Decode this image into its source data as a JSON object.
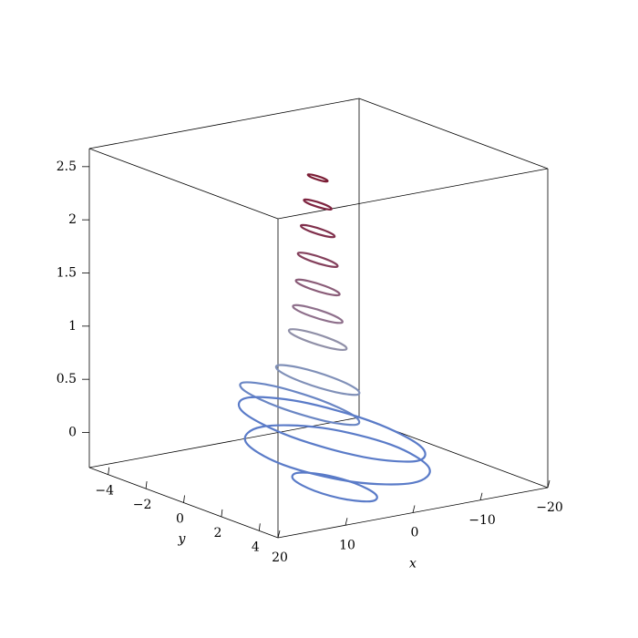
{
  "chart_data": {
    "type": "line3d",
    "xlabel": "x",
    "ylabel": "y",
    "xlim": [
      -20,
      20
    ],
    "ylim": [
      -5,
      5
    ],
    "zlim": [
      -0.33,
      2.67
    ],
    "xticks": [
      20,
      10,
      0,
      {
        "value": -10,
        "label": "−10"
      },
      {
        "value": -20,
        "label": "−20"
      }
    ],
    "yticks": [
      {
        "value": -4,
        "label": "−4"
      },
      {
        "value": -2,
        "label": "−2"
      },
      0,
      2,
      4
    ],
    "zticks": [
      0,
      0.5,
      1,
      1.5,
      2,
      2.5
    ],
    "box": true,
    "series": [
      {
        "color": "#7b1d35",
        "x": [
          -0.5,
          -0.65,
          -1,
          -1.35,
          -1.5,
          -1.35,
          -1,
          -0.65
        ],
        "y": [
          -0.4,
          -0.05,
          0.1,
          -0.05,
          -0.4,
          -0.75,
          -0.9,
          -0.75
        ],
        "z": [
          2.45,
          2.45,
          2.45,
          2.45,
          2.45,
          2.45,
          2.45,
          2.45
        ]
      },
      {
        "color": "#7e2440",
        "x": [
          -0.3,
          -0.51,
          -1,
          -1.49,
          -1.7,
          -1.49,
          -1,
          -0.51
        ],
        "y": [
          -0.4,
          0.09,
          0.3,
          0.09,
          -0.4,
          -0.89,
          -1.1,
          -0.89
        ],
        "z": [
          2.2,
          2.2,
          2.2,
          2.2,
          2.2,
          2.2,
          2.2,
          2.2
        ]
      },
      {
        "color": "#80304c",
        "x": [
          -0.15,
          -0.4,
          -1,
          -1.6,
          -1.85,
          -1.6,
          -1,
          -0.4
        ],
        "y": [
          -0.4,
          0.2,
          0.45,
          0.2,
          -0.4,
          -1,
          -1.25,
          -1
        ],
        "z": [
          1.95,
          1.95,
          1.95,
          1.95,
          1.95,
          1.95,
          1.95,
          1.95
        ]
      },
      {
        "color": "#84405c",
        "x": [
          0,
          -0.29,
          -1,
          -1.71,
          -2,
          -1.71,
          -1,
          -0.29
        ],
        "y": [
          -0.4,
          0.31,
          0.6,
          0.31,
          -0.4,
          -1.11,
          -1.4,
          -1.11
        ],
        "z": [
          1.68,
          1.68,
          1.68,
          1.68,
          1.68,
          1.68,
          1.68,
          1.68
        ]
      },
      {
        "color": "#8a5c78",
        "x": [
          0.1,
          -0.22,
          -1,
          -1.78,
          -2.1,
          -1.78,
          -1,
          -0.22
        ],
        "y": [
          -0.4,
          0.38,
          0.7,
          0.38,
          -0.4,
          -1.18,
          -1.5,
          -1.18
        ],
        "z": [
          1.42,
          1.42,
          1.42,
          1.42,
          1.42,
          1.42,
          1.42,
          1.42
        ]
      },
      {
        "color": "#8e6f8b",
        "x": [
          0.25,
          -0.12,
          -1,
          -1.88,
          -2.25,
          -1.88,
          -1,
          -0.12
        ],
        "y": [
          -0.4,
          0.48,
          0.85,
          0.48,
          -0.4,
          -1.28,
          -1.65,
          -1.28
        ],
        "z": [
          1.17,
          1.17,
          1.17,
          1.17,
          1.17,
          1.17,
          1.17,
          1.17
        ]
      },
      {
        "color": "#9090a8",
        "x": [
          0.45,
          0.03,
          -1,
          -2.03,
          -2.45,
          -2.03,
          -1,
          0.03
        ],
        "y": [
          -0.4,
          0.63,
          1.05,
          0.63,
          -0.4,
          -1.43,
          -1.85,
          -1.43
        ],
        "z": [
          0.93,
          0.93,
          0.93,
          0.93,
          0.93,
          0.93,
          0.93,
          0.93
        ]
      },
      {
        "color": "#8090b8",
        "x": [
          1.1,
          0.48,
          -1,
          -2.48,
          -3.1,
          -2.48,
          -1,
          0.48
        ],
        "y": [
          -0.4,
          1.08,
          1.7,
          1.08,
          -0.4,
          -1.88,
          -2.5,
          -1.88
        ],
        "z": [
          0.55,
          0.55,
          0.55,
          0.55,
          0.55,
          0.55,
          0.55,
          0.55
        ]
      },
      {
        "color": "#6a86c4",
        "x": [
          3,
          2.12,
          0,
          -2.12,
          -3,
          -2.12,
          0,
          2.12
        ],
        "y": [
          -1,
          1.12,
          2,
          1.12,
          -1,
          -3.12,
          -4,
          -3.12
        ],
        "z": [
          0.3,
          0.3,
          0.3,
          0.3,
          0.3,
          0.3,
          0.3,
          0.3
        ]
      },
      {
        "color": "#5a7bc8",
        "x": [
          4,
          2.24,
          -2,
          -6.24,
          -8,
          -6.24,
          -2,
          2.24
        ],
        "y": [
          0,
          3.18,
          4.5,
          3.18,
          0,
          -3.18,
          -4.5,
          -3.18
        ],
        "z": [
          0.1,
          0.1,
          0.1,
          0.1,
          0.1,
          0.1,
          0.1,
          0.1
        ]
      },
      {
        "color": "#5a7bc8",
        "x": [
          8,
          5.66,
          0,
          -5.66,
          -8,
          -5.66,
          0,
          5.66
        ],
        "y": [
          1,
          3.83,
          5,
          3.83,
          1,
          -1.83,
          -3,
          -1.83
        ],
        "z": [
          -0.05,
          -0.05,
          -0.05,
          -0.05,
          -0.05,
          -0.05,
          -0.05,
          -0.05
        ]
      },
      {
        "color": "#5a7bc8",
        "x": [
          9,
          8.12,
          6,
          3.88,
          3,
          3.88,
          6,
          8.12
        ],
        "y": [
          3,
          4.41,
          5,
          4.41,
          3,
          1.59,
          1,
          1.59
        ],
        "z": [
          -0.15,
          -0.15,
          -0.15,
          -0.15,
          -0.15,
          -0.15,
          -0.15,
          -0.15
        ]
      }
    ]
  }
}
